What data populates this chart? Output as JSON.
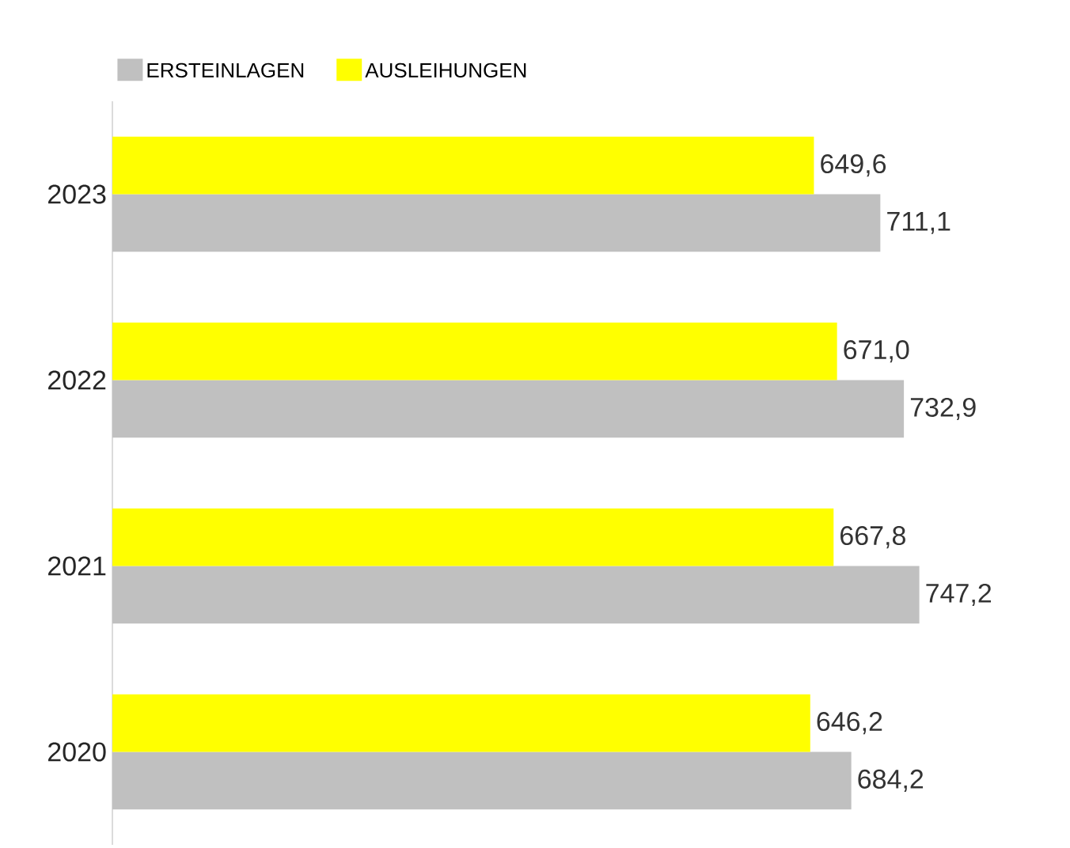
{
  "chart_data": {
    "type": "bar",
    "orientation": "horizontal",
    "categories": [
      "2023",
      "2022",
      "2021",
      "2020"
    ],
    "legend": "top left",
    "series": [
      {
        "name": "ERSTEINLAGEN",
        "color": "#c0c0c0",
        "values": [
          711.1,
          732.9,
          747.2,
          684.2
        ],
        "value_labels": [
          "711,1",
          "732,9",
          "747,2",
          "684,2"
        ]
      },
      {
        "name": "AUSLEIHUNGEN",
        "color": "#ffff00",
        "values": [
          649.6,
          671.0,
          667.8,
          646.2
        ],
        "value_labels": [
          "649,6",
          "671,0",
          "667,8",
          "646,2"
        ]
      }
    ]
  }
}
